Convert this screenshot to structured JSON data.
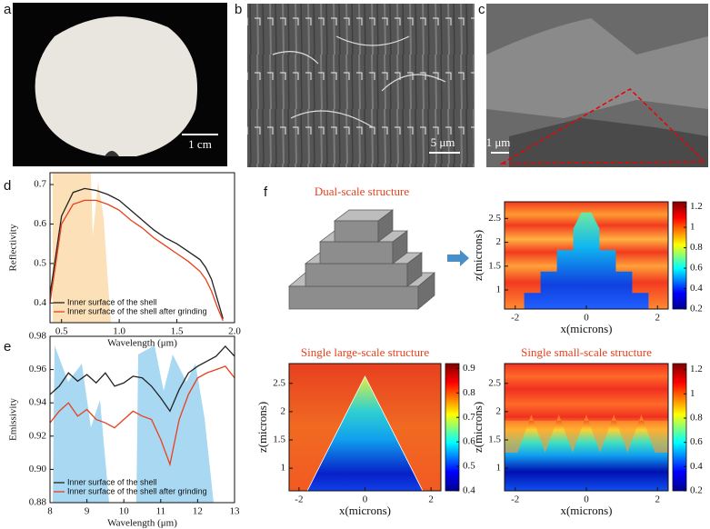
{
  "panels": {
    "a": {
      "label": "a",
      "scale": "1 cm"
    },
    "b": {
      "label": "b",
      "scale": "5 μm"
    },
    "c": {
      "label": "c",
      "scale": "1 μm"
    }
  },
  "chart_data": [
    {
      "type": "line",
      "panel": "d",
      "ylabel": "Reflectivity",
      "xlabel": "Wavelength (μm)",
      "x": [
        0.4,
        0.5,
        0.6,
        0.7,
        0.8,
        0.9,
        1.0,
        1.1,
        1.2,
        1.3,
        1.4,
        1.5,
        1.6,
        1.7,
        1.75,
        1.8,
        1.85,
        1.9
      ],
      "series": [
        {
          "name": "Inner surface of the shell",
          "color": "#222222",
          "values": [
            0.42,
            0.62,
            0.68,
            0.69,
            0.685,
            0.675,
            0.66,
            0.635,
            0.61,
            0.585,
            0.565,
            0.55,
            0.53,
            0.51,
            0.49,
            0.46,
            0.41,
            0.36
          ]
        },
        {
          "name": "Inner surface of the shell after grinding",
          "color": "#e8401c",
          "values": [
            0.4,
            0.6,
            0.65,
            0.66,
            0.66,
            0.65,
            0.635,
            0.61,
            0.59,
            0.565,
            0.545,
            0.525,
            0.505,
            0.48,
            0.46,
            0.43,
            0.39,
            0.355
          ]
        }
      ],
      "xlim": [
        0.4,
        2.0
      ],
      "xticks": [
        0.5,
        {
          "value": 1.0,
          "label": "1.0"
        },
        1.5,
        {
          "value": 2.0,
          "label": "2.0"
        }
      ],
      "ylim": [
        0.35,
        0.73
      ],
      "yticks": [
        0.4,
        0.5,
        0.6,
        0.7
      ],
      "legend": "lower-left"
    },
    {
      "type": "line",
      "panel": "e",
      "ylabel": "Emissivity",
      "xlabel": "Wavelength (μm)",
      "x": [
        8,
        8.25,
        8.5,
        8.75,
        9,
        9.25,
        9.5,
        9.75,
        10,
        10.25,
        10.5,
        10.75,
        11,
        11.25,
        11.5,
        11.75,
        12,
        12.25,
        12.5,
        12.75,
        13
      ],
      "series": [
        {
          "name": "Inner surface of the shell",
          "color": "#222222",
          "values": [
            0.945,
            0.95,
            0.958,
            0.953,
            0.957,
            0.952,
            0.958,
            0.95,
            0.952,
            0.956,
            0.955,
            0.95,
            0.943,
            0.935,
            0.948,
            0.958,
            0.962,
            0.965,
            0.968,
            0.974,
            0.968
          ]
        },
        {
          "name": "Inner surface of the shell after grinding",
          "color": "#e8401c",
          "values": [
            0.928,
            0.935,
            0.94,
            0.932,
            0.936,
            0.93,
            0.928,
            0.925,
            0.93,
            0.935,
            0.932,
            0.93,
            0.918,
            0.903,
            0.93,
            0.945,
            0.955,
            0.958,
            0.96,
            0.962,
            0.955
          ]
        }
      ],
      "xlim": [
        8,
        13
      ],
      "xticks": [
        8,
        9,
        10,
        11,
        12,
        13
      ],
      "ylim": [
        0.88,
        0.98
      ],
      "yticks": [
        0.88,
        {
          "value": 0.9,
          "label": "0.90"
        },
        0.92,
        0.94,
        0.96,
        0.98
      ],
      "legend": "lower-left"
    }
  ],
  "f": {
    "label": "f",
    "title": "Dual-scale structure",
    "maps": [
      {
        "kind": "dual",
        "xlabel": "x(microns)",
        "ylabel": "z(microns)",
        "xlim": [
          -2.3,
          2.3
        ],
        "xticks": [
          -2,
          0,
          2
        ],
        "ylim": [
          0.6,
          2.85
        ],
        "yticks": [
          1,
          1.5,
          2,
          2.5
        ],
        "clim": [
          0.2,
          1.25
        ],
        "cticks": [
          0.2,
          0.4,
          0.6,
          0.8,
          1,
          1.2
        ]
      },
      {
        "kind": "large",
        "title": "Single large-scale structure",
        "xlabel": "x(microns)",
        "ylabel": "z(microns)",
        "xlim": [
          -2.3,
          2.3
        ],
        "xticks": [
          -2,
          0,
          2
        ],
        "ylim": [
          0.6,
          2.85
        ],
        "yticks": [
          1,
          1.5,
          2,
          2.5
        ],
        "clim": [
          0.4,
          0.92
        ],
        "cticks": [
          0.4,
          0.5,
          0.6,
          0.7,
          0.8,
          0.9
        ]
      },
      {
        "kind": "small",
        "title": "Single small-scale structure",
        "xlabel": "x(microns)",
        "ylabel": "z(microns)",
        "xlim": [
          -2.3,
          2.3
        ],
        "xticks": [
          -2,
          0,
          2
        ],
        "ylim": [
          0.6,
          2.85
        ],
        "yticks": [
          1,
          1.5,
          2,
          2.5
        ],
        "clim": [
          0.2,
          1.25
        ],
        "cticks": [
          0.2,
          0.4,
          0.6,
          0.8,
          1,
          1.2
        ]
      }
    ]
  }
}
